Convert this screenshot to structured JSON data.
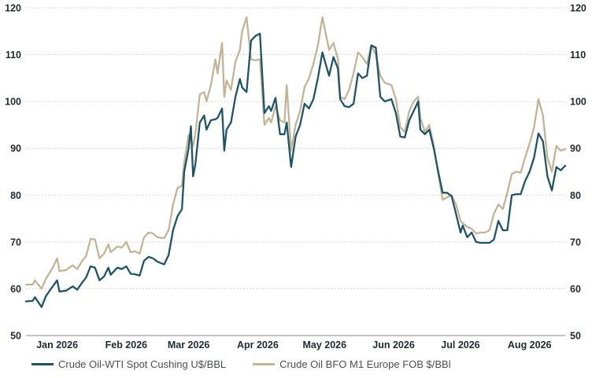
{
  "colors": {
    "wti": "#1d5468",
    "bfo": "#c2b495",
    "grid": "#c9c9c9",
    "text": "#1f2a30"
  },
  "chart_data": {
    "type": "line",
    "xlabel": "",
    "ylabel": "",
    "ylim": [
      50,
      120
    ],
    "y_ticks": [
      50,
      60,
      70,
      80,
      90,
      100,
      110,
      120
    ],
    "grid": true,
    "legend_position": "bottom-left",
    "x_tick_labels": [
      "Jan 2026",
      "Feb 2026",
      "Mar 2026",
      "Apr 2026",
      "May 2026",
      "Jun 2026",
      "Jul 2026",
      "Aug 2026"
    ],
    "x_tick_dates": [
      "2026-01-15",
      "2026-02-15",
      "2026-03-15",
      "2026-04-15",
      "2026-05-15",
      "2026-06-15",
      "2026-07-15",
      "2026-08-15"
    ],
    "xlim": [
      "2026-01-01",
      "2026-08-31"
    ],
    "series": [
      {
        "name": "Crude Oil-WTI Spot Cushing U$/BBL",
        "color": "#1d5468",
        "points": [
          [
            "2026-01-01",
            57.3
          ],
          [
            "2026-01-04",
            57.4
          ],
          [
            "2026-01-05",
            58.2
          ],
          [
            "2026-01-08",
            56.1
          ],
          [
            "2026-01-10",
            58.5
          ],
          [
            "2026-01-13",
            60.5
          ],
          [
            "2026-01-15",
            61.8
          ],
          [
            "2026-01-16",
            59.4
          ],
          [
            "2026-01-19",
            59.6
          ],
          [
            "2026-01-22",
            60.5
          ],
          [
            "2026-01-24",
            59.8
          ],
          [
            "2026-01-26",
            61.2
          ],
          [
            "2026-01-28",
            62.4
          ],
          [
            "2026-01-30",
            64.8
          ],
          [
            "2026-02-01",
            64.5
          ],
          [
            "2026-02-03",
            61.8
          ],
          [
            "2026-02-05",
            62.6
          ],
          [
            "2026-02-07",
            64.5
          ],
          [
            "2026-02-08",
            63.0
          ],
          [
            "2026-02-11",
            64.5
          ],
          [
            "2026-02-13",
            64.2
          ],
          [
            "2026-02-15",
            64.8
          ],
          [
            "2026-02-17",
            63.2
          ],
          [
            "2026-02-19",
            63.1
          ],
          [
            "2026-02-21",
            62.8
          ],
          [
            "2026-02-23",
            66.0
          ],
          [
            "2026-02-25",
            66.8
          ],
          [
            "2026-02-27",
            66.5
          ],
          [
            "2026-03-01",
            65.8
          ],
          [
            "2026-03-04",
            65.2
          ],
          [
            "2026-03-06",
            67.2
          ],
          [
            "2026-03-08",
            72.5
          ],
          [
            "2026-03-10",
            75.5
          ],
          [
            "2026-03-12",
            77.0
          ],
          [
            "2026-03-13",
            85.0
          ],
          [
            "2026-03-15",
            90.0
          ],
          [
            "2026-03-16",
            94.7
          ],
          [
            "2026-03-17",
            84.0
          ],
          [
            "2026-03-18",
            86.5
          ],
          [
            "2026-03-20",
            95.5
          ],
          [
            "2026-03-22",
            97.0
          ],
          [
            "2026-03-23",
            94.0
          ],
          [
            "2026-03-25",
            96.0
          ],
          [
            "2026-03-27",
            96.2
          ],
          [
            "2026-03-28",
            96.5
          ],
          [
            "2026-03-30",
            98.5
          ],
          [
            "2026-03-31",
            89.5
          ],
          [
            "2026-04-01",
            94.0
          ],
          [
            "2026-04-03",
            95.5
          ],
          [
            "2026-04-05",
            101.0
          ],
          [
            "2026-04-07",
            104.8
          ],
          [
            "2026-04-08",
            103.0
          ],
          [
            "2026-04-10",
            102.0
          ],
          [
            "2026-04-12",
            113.0
          ],
          [
            "2026-04-14",
            114.0
          ],
          [
            "2026-04-16",
            114.5
          ],
          [
            "2026-04-18",
            97.5
          ],
          [
            "2026-04-20",
            99.0
          ],
          [
            "2026-04-21",
            98.0
          ],
          [
            "2026-04-23",
            100.8
          ],
          [
            "2026-04-25",
            93.0
          ],
          [
            "2026-04-27",
            93.0
          ],
          [
            "2026-04-28",
            95.5
          ],
          [
            "2026-04-30",
            86.0
          ],
          [
            "2026-05-02",
            92.5
          ],
          [
            "2026-05-04",
            95.0
          ],
          [
            "2026-05-06",
            99.5
          ],
          [
            "2026-05-08",
            98.5
          ],
          [
            "2026-05-10",
            100.5
          ],
          [
            "2026-05-12",
            105.0
          ],
          [
            "2026-05-14",
            110.5
          ],
          [
            "2026-05-17",
            105.5
          ],
          [
            "2026-05-19",
            109.5
          ],
          [
            "2026-05-21",
            107.0
          ],
          [
            "2026-05-22",
            100.5
          ],
          [
            "2026-05-24",
            99.0
          ],
          [
            "2026-05-26",
            98.8
          ],
          [
            "2026-05-28",
            99.5
          ],
          [
            "2026-05-30",
            106.0
          ],
          [
            "2026-06-01",
            105.0
          ],
          [
            "2026-06-03",
            105.5
          ],
          [
            "2026-06-05",
            112.0
          ],
          [
            "2026-06-07",
            111.5
          ],
          [
            "2026-06-09",
            101.0
          ],
          [
            "2026-06-11",
            100.0
          ],
          [
            "2026-06-14",
            100.5
          ],
          [
            "2026-06-16",
            97.5
          ],
          [
            "2026-06-18",
            92.5
          ],
          [
            "2026-06-20",
            92.3
          ],
          [
            "2026-06-22",
            96.0
          ],
          [
            "2026-06-24",
            98.0
          ],
          [
            "2026-06-26",
            100.0
          ],
          [
            "2026-06-27",
            94.0
          ],
          [
            "2026-06-29",
            93.0
          ],
          [
            "2026-07-01",
            94.0
          ],
          [
            "2026-07-03",
            90.0
          ],
          [
            "2026-07-05",
            85.0
          ],
          [
            "2026-07-07",
            80.5
          ],
          [
            "2026-07-09",
            80.5
          ],
          [
            "2026-07-11",
            79.8
          ],
          [
            "2026-07-13",
            76.0
          ],
          [
            "2026-07-15",
            72.0
          ],
          [
            "2026-07-16",
            73.5
          ],
          [
            "2026-07-18",
            71.0
          ],
          [
            "2026-07-20",
            72.0
          ],
          [
            "2026-07-22",
            70.0
          ],
          [
            "2026-07-24",
            69.8
          ],
          [
            "2026-07-26",
            69.8
          ],
          [
            "2026-07-28",
            69.8
          ],
          [
            "2026-07-30",
            70.5
          ],
          [
            "2026-08-01",
            74.5
          ],
          [
            "2026-08-03",
            72.5
          ],
          [
            "2026-08-05",
            72.5
          ],
          [
            "2026-08-07",
            80.0
          ],
          [
            "2026-08-09",
            80.2
          ],
          [
            "2026-08-11",
            80.2
          ],
          [
            "2026-08-13",
            83.0
          ],
          [
            "2026-08-15",
            85.0
          ],
          [
            "2026-08-17",
            88.0
          ],
          [
            "2026-08-19",
            93.2
          ],
          [
            "2026-08-21",
            91.5
          ],
          [
            "2026-08-23",
            84.0
          ],
          [
            "2026-08-25",
            81.0
          ],
          [
            "2026-08-27",
            86.0
          ],
          [
            "2026-08-29",
            85.3
          ],
          [
            "2026-08-31",
            86.3
          ]
        ]
      },
      {
        "name": "Crude Oil BFO M1 Europe FOB $/BBl",
        "color": "#c2b495",
        "points": [
          [
            "2026-01-01",
            60.9
          ],
          [
            "2026-01-04",
            60.9
          ],
          [
            "2026-01-05",
            61.8
          ],
          [
            "2026-01-08",
            60.0
          ],
          [
            "2026-01-10",
            62.2
          ],
          [
            "2026-01-13",
            64.5
          ],
          [
            "2026-01-15",
            66.5
          ],
          [
            "2026-01-16",
            63.8
          ],
          [
            "2026-01-19",
            64.0
          ],
          [
            "2026-01-22",
            65.0
          ],
          [
            "2026-01-24",
            64.2
          ],
          [
            "2026-01-26",
            65.8
          ],
          [
            "2026-01-28",
            67.0
          ],
          [
            "2026-01-30",
            70.7
          ],
          [
            "2026-02-01",
            70.5
          ],
          [
            "2026-02-03",
            66.5
          ],
          [
            "2026-02-05",
            67.5
          ],
          [
            "2026-02-07",
            69.5
          ],
          [
            "2026-02-08",
            67.8
          ],
          [
            "2026-02-11",
            69.0
          ],
          [
            "2026-02-13",
            68.8
          ],
          [
            "2026-02-15",
            70.0
          ],
          [
            "2026-02-17",
            67.8
          ],
          [
            "2026-02-19",
            68.0
          ],
          [
            "2026-02-21",
            67.5
          ],
          [
            "2026-02-23",
            71.0
          ],
          [
            "2026-02-25",
            72.0
          ],
          [
            "2026-02-27",
            71.8
          ],
          [
            "2026-03-01",
            71.0
          ],
          [
            "2026-03-04",
            70.8
          ],
          [
            "2026-03-06",
            72.5
          ],
          [
            "2026-03-08",
            78.0
          ],
          [
            "2026-03-10",
            81.5
          ],
          [
            "2026-03-12",
            82.0
          ],
          [
            "2026-03-13",
            87.0
          ],
          [
            "2026-03-15",
            92.8
          ],
          [
            "2026-03-16",
            92.0
          ],
          [
            "2026-03-17",
            90.5
          ],
          [
            "2026-03-18",
            93.0
          ],
          [
            "2026-03-20",
            101.5
          ],
          [
            "2026-03-22",
            102.0
          ],
          [
            "2026-03-23",
            100.0
          ],
          [
            "2026-03-25",
            103.5
          ],
          [
            "2026-03-27",
            109.0
          ],
          [
            "2026-03-28",
            106.0
          ],
          [
            "2026-03-30",
            112.5
          ],
          [
            "2026-03-31",
            101.0
          ],
          [
            "2026-04-01",
            104.5
          ],
          [
            "2026-04-03",
            102.5
          ],
          [
            "2026-04-05",
            108.5
          ],
          [
            "2026-04-07",
            111.0
          ],
          [
            "2026-04-08",
            115.0
          ],
          [
            "2026-04-10",
            118.0
          ],
          [
            "2026-04-12",
            109.0
          ],
          [
            "2026-04-14",
            108.8
          ],
          [
            "2026-04-16",
            109.0
          ],
          [
            "2026-04-18",
            95.0
          ],
          [
            "2026-04-20",
            96.5
          ],
          [
            "2026-04-21",
            95.5
          ],
          [
            "2026-04-23",
            99.0
          ],
          [
            "2026-04-25",
            96.0
          ],
          [
            "2026-04-27",
            95.5
          ],
          [
            "2026-04-28",
            103.5
          ],
          [
            "2026-04-30",
            89.5
          ],
          [
            "2026-05-02",
            95.0
          ],
          [
            "2026-05-04",
            98.0
          ],
          [
            "2026-05-06",
            103.0
          ],
          [
            "2026-05-08",
            105.0
          ],
          [
            "2026-05-10",
            108.0
          ],
          [
            "2026-05-12",
            112.0
          ],
          [
            "2026-05-14",
            118.0
          ],
          [
            "2026-05-17",
            111.0
          ],
          [
            "2026-05-19",
            112.5
          ],
          [
            "2026-05-21",
            109.0
          ],
          [
            "2026-05-22",
            101.0
          ],
          [
            "2026-05-24",
            100.5
          ],
          [
            "2026-05-26",
            102.5
          ],
          [
            "2026-05-28",
            106.0
          ],
          [
            "2026-05-30",
            110.5
          ],
          [
            "2026-06-01",
            109.5
          ],
          [
            "2026-06-03",
            108.0
          ],
          [
            "2026-06-05",
            112.0
          ],
          [
            "2026-06-07",
            110.0
          ],
          [
            "2026-06-09",
            105.5
          ],
          [
            "2026-06-11",
            104.0
          ],
          [
            "2026-06-14",
            103.5
          ],
          [
            "2026-06-16",
            100.5
          ],
          [
            "2026-06-18",
            94.5
          ],
          [
            "2026-06-20",
            93.5
          ],
          [
            "2026-06-22",
            98.0
          ],
          [
            "2026-06-24",
            100.0
          ],
          [
            "2026-06-26",
            101.0
          ],
          [
            "2026-06-27",
            96.5
          ],
          [
            "2026-06-29",
            93.5
          ],
          [
            "2026-07-01",
            95.0
          ],
          [
            "2026-07-03",
            90.5
          ],
          [
            "2026-07-05",
            84.5
          ],
          [
            "2026-07-07",
            79.0
          ],
          [
            "2026-07-09",
            79.5
          ],
          [
            "2026-07-11",
            80.0
          ],
          [
            "2026-07-13",
            78.0
          ],
          [
            "2026-07-15",
            74.5
          ],
          [
            "2026-07-16",
            74.0
          ],
          [
            "2026-07-18",
            73.2
          ],
          [
            "2026-07-20",
            72.8
          ],
          [
            "2026-07-22",
            71.8
          ],
          [
            "2026-07-24",
            72.0
          ],
          [
            "2026-07-26",
            72.0
          ],
          [
            "2026-07-28",
            72.5
          ],
          [
            "2026-07-30",
            76.0
          ],
          [
            "2026-08-01",
            78.0
          ],
          [
            "2026-08-03",
            77.0
          ],
          [
            "2026-08-05",
            80.5
          ],
          [
            "2026-08-07",
            84.5
          ],
          [
            "2026-08-09",
            85.0
          ],
          [
            "2026-08-11",
            84.8
          ],
          [
            "2026-08-13",
            88.0
          ],
          [
            "2026-08-15",
            91.0
          ],
          [
            "2026-08-17",
            94.5
          ],
          [
            "2026-08-19",
            100.5
          ],
          [
            "2026-08-21",
            97.0
          ],
          [
            "2026-08-23",
            88.0
          ],
          [
            "2026-08-25",
            85.0
          ],
          [
            "2026-08-27",
            90.5
          ],
          [
            "2026-08-29",
            89.5
          ],
          [
            "2026-08-31",
            89.8
          ]
        ]
      }
    ]
  }
}
